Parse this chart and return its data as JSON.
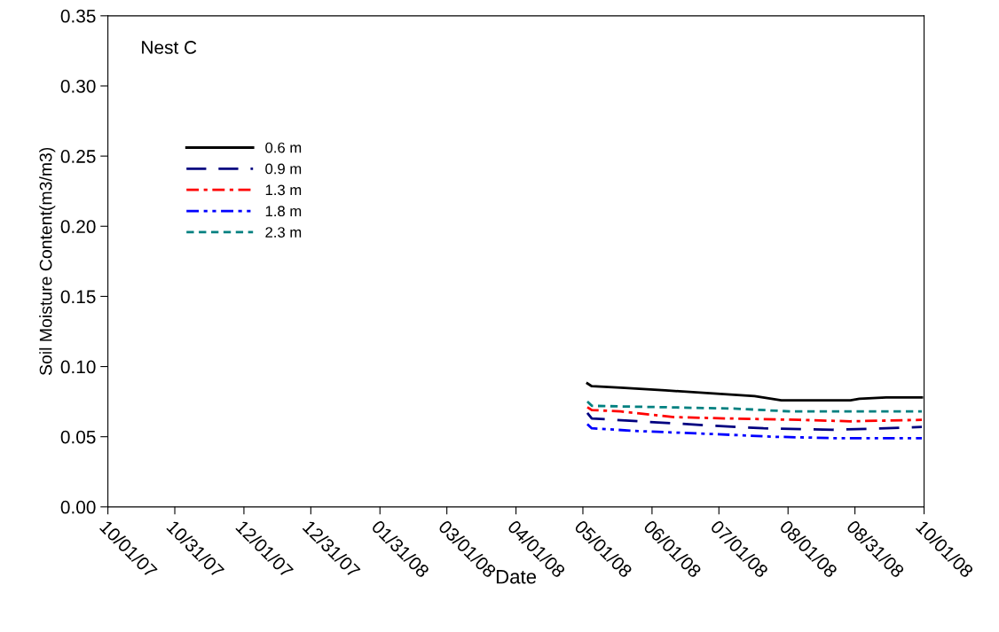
{
  "chart_data": {
    "type": "line",
    "xlabel": "Date",
    "ylabel": "Soil Moisture Content(m3/m3)",
    "annotations": [
      "Nest C"
    ],
    "xlim": [
      "2007-10-01",
      "2008-10-01"
    ],
    "xticks": [
      {
        "value": "2007-10-01",
        "label": "10/01/07"
      },
      {
        "value": "2007-10-31",
        "label": "10/31/07"
      },
      {
        "value": "2007-12-01",
        "label": "12/01/07"
      },
      {
        "value": "2007-12-31",
        "label": "12/31/07"
      },
      {
        "value": "2008-01-31",
        "label": "01/31/08"
      },
      {
        "value": "2008-03-01",
        "label": "03/01/08"
      },
      {
        "value": "2008-04-01",
        "label": "04/01/08"
      },
      {
        "value": "2008-05-01",
        "label": "05/01/08"
      },
      {
        "value": "2008-06-01",
        "label": "06/01/08"
      },
      {
        "value": "2008-07-01",
        "label": "07/01/08"
      },
      {
        "value": "2008-08-01",
        "label": "08/01/08"
      },
      {
        "value": "2008-08-31",
        "label": "08/31/08"
      },
      {
        "value": "2008-10-01",
        "label": "10/01/08"
      }
    ],
    "ylim": [
      0,
      0.35
    ],
    "yticks": [
      {
        "value": 0,
        "label": "0.00"
      },
      {
        "value": 0.05,
        "label": "0.05"
      },
      {
        "value": 0.1,
        "label": "0.10"
      },
      {
        "value": 0.15,
        "label": "0.15"
      },
      {
        "value": 0.2,
        "label": "0.20"
      },
      {
        "value": 0.25,
        "label": "0.25"
      },
      {
        "value": 0.3,
        "label": "0.30"
      },
      {
        "value": 0.35,
        "label": "0.35"
      }
    ],
    "grid": false,
    "legend": "top left",
    "marker": "none",
    "series": [
      {
        "name": "0.6 m",
        "color": "#000000",
        "line_style": "solid",
        "x": [
          "2008-05-03",
          "2008-05-05",
          "2008-05-18",
          "2008-06-07",
          "2008-06-27",
          "2008-07-17",
          "2008-07-29",
          "2008-08-13",
          "2008-08-21",
          "2008-08-29",
          "2008-09-02",
          "2008-09-14",
          "2008-09-30"
        ],
        "values": [
          0.088,
          0.086,
          0.085,
          0.083,
          0.081,
          0.079,
          0.076,
          0.076,
          0.076,
          0.076,
          0.077,
          0.078,
          0.078
        ]
      },
      {
        "name": "0.9 m",
        "color": "#000080",
        "line_style": "dashed",
        "x": [
          "2008-05-03",
          "2008-05-05",
          "2008-05-26",
          "2008-06-27",
          "2008-07-21",
          "2008-08-21",
          "2008-09-14",
          "2008-09-30"
        ],
        "values": [
          0.067,
          0.063,
          0.061,
          0.058,
          0.056,
          0.055,
          0.056,
          0.057
        ]
      },
      {
        "name": "1.3 m",
        "color": "#ff0000",
        "line_style": "dashdot",
        "x": [
          "2008-05-03",
          "2008-05-05",
          "2008-05-18",
          "2008-06-11",
          "2008-07-05",
          "2008-08-06",
          "2008-08-29",
          "2008-09-30"
        ],
        "values": [
          0.071,
          0.069,
          0.068,
          0.064,
          0.063,
          0.062,
          0.061,
          0.062
        ]
      },
      {
        "name": "1.8 m",
        "color": "#0000ff",
        "line_style": "dashdotdot",
        "x": [
          "2008-05-03",
          "2008-05-05",
          "2008-05-26",
          "2008-06-27",
          "2008-07-25",
          "2008-08-21",
          "2008-09-30"
        ],
        "values": [
          0.059,
          0.056,
          0.054,
          0.052,
          0.05,
          0.049,
          0.049
        ]
      },
      {
        "name": "2.3 m",
        "color": "#008080",
        "line_style": "dotted",
        "x": [
          "2008-05-03",
          "2008-05-05",
          "2008-06-07",
          "2008-07-09",
          "2008-08-02",
          "2008-08-29",
          "2008-09-30"
        ],
        "values": [
          0.075,
          0.072,
          0.071,
          0.07,
          0.068,
          0.068,
          0.068
        ]
      }
    ]
  }
}
